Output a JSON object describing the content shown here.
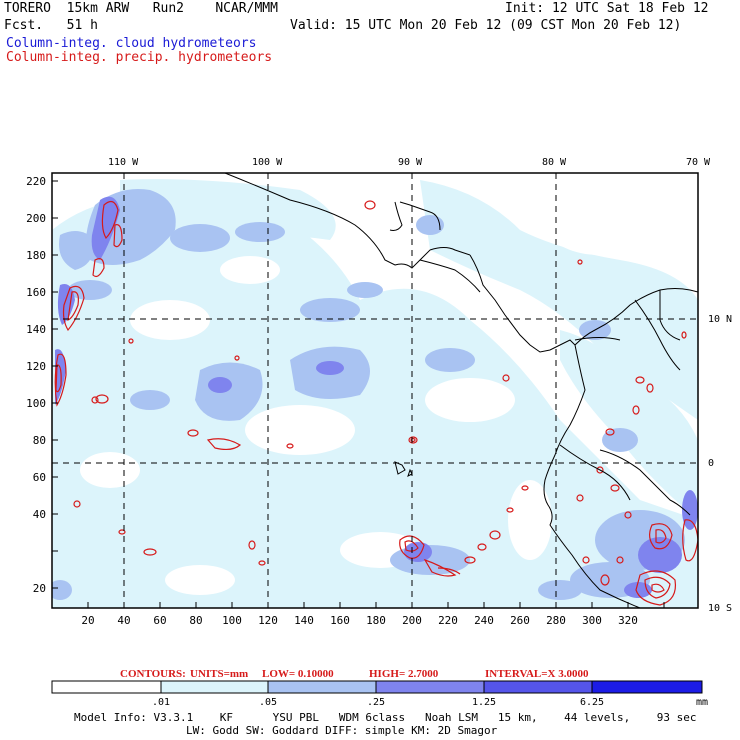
{
  "header": {
    "model_line": "TORERO  15km ARW   Run2    NCAR/MMM",
    "init_line": "Init: 12 UTC Sat 18 Feb 12",
    "fcst_line": "Fcst.   51 h",
    "valid_line": "Valid: 15 UTC Mon 20 Feb 12 (09 CST Mon 20 Feb 12)",
    "field_cloud": "Column-integ. cloud hydrometeors",
    "field_precip": "Column-integ. precip. hydrometeors"
  },
  "map": {
    "lon_labels": [
      "110 W",
      "100 W",
      "90 W",
      "80 W",
      "70 W"
    ],
    "lat_labels": [
      "10 N",
      "0",
      "10 S"
    ],
    "y_ticks": [
      "220",
      "200",
      "180",
      "160",
      "140",
      "120",
      "100",
      "80",
      "60",
      "40",
      "20"
    ],
    "x_ticks": [
      "20",
      "40",
      "60",
      "80",
      "100",
      "120",
      "140",
      "160",
      "180",
      "200",
      "220",
      "240",
      "260",
      "280",
      "300",
      "320"
    ]
  },
  "contour_info": {
    "label": "CONTOURS:",
    "units": "UNITS=mm",
    "low": "LOW= 0.10000",
    "high": "HIGH=  2.7000",
    "interval": "INTERVAL=X  3.0000"
  },
  "colorbar": {
    "levels": [
      ".01",
      ".05",
      ".25",
      "1.25",
      "6.25"
    ],
    "units": "mm",
    "colors": [
      "#ffffff",
      "#dcf4fb",
      "#a9c3f2",
      "#7f84ee",
      "#5555ea",
      "#1c1ce6"
    ]
  },
  "footer": {
    "line1": "Model Info: V3.3.1    KF      YSU PBL   WDM 6class   Noah LSM   15 km,    44 levels,    93 sec",
    "line2": "LW: Godd SW: Goddard DIFF: simple KM: 2D Smagor"
  }
}
